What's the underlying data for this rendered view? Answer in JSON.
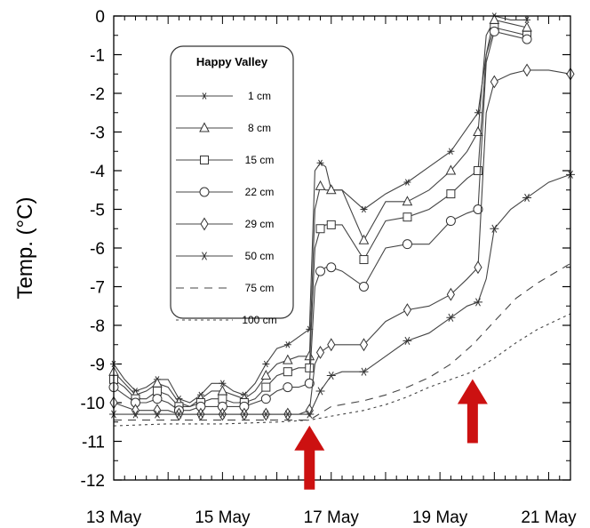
{
  "chart_data": {
    "type": "line",
    "title": "",
    "xlabel": "",
    "ylabel": "Temp. (°C)",
    "xlim": [
      13,
      21.4
    ],
    "ylim": [
      -12,
      0
    ],
    "x_ticks": [
      13,
      15,
      17,
      19,
      21
    ],
    "x_tick_labels": [
      "13 May",
      "15 May",
      "17 May",
      "19 May",
      "21 May"
    ],
    "y_ticks": [
      0,
      -1,
      -2,
      -3,
      -4,
      -5,
      -6,
      -7,
      -8,
      -9,
      -10,
      -11,
      -12
    ],
    "y_tick_labels": [
      "0",
      "-1",
      "-2",
      "-3",
      "-4",
      "-5",
      "-6",
      "-7",
      "-8",
      "-9",
      "-10",
      "-11",
      "-12"
    ],
    "grid": false,
    "legend": {
      "title": "Happy Valley",
      "placement": "top-left"
    },
    "series": [
      {
        "name": "1 cm",
        "marker": "star-small",
        "dash": "solid",
        "x": [
          13,
          13.2,
          13.4,
          13.6,
          13.8,
          14.0,
          14.2,
          14.4,
          14.6,
          14.8,
          15.0,
          15.2,
          15.4,
          15.6,
          15.8,
          16.0,
          16.2,
          16.4,
          16.6,
          16.7,
          16.8,
          16.9,
          17.0,
          17.2,
          17.6,
          18.0,
          18.4,
          18.8,
          19.2,
          19.5,
          19.7,
          19.85,
          20.0,
          20.3,
          20.6
        ],
        "y": [
          -9.0,
          -9.4,
          -9.7,
          -9.6,
          -9.4,
          -9.4,
          -9.9,
          -10.0,
          -9.8,
          -9.5,
          -9.5,
          -9.7,
          -9.8,
          -9.5,
          -9.0,
          -8.6,
          -8.5,
          -8.3,
          -8.1,
          -4.0,
          -3.8,
          -3.9,
          -4.5,
          -4.5,
          -5.0,
          -4.6,
          -4.3,
          -3.9,
          -3.5,
          -2.9,
          -2.5,
          -1.0,
          0.0,
          -0.1,
          -0.1
        ]
      },
      {
        "name": "8 cm",
        "marker": "triangle",
        "dash": "solid",
        "x": [
          13,
          13.2,
          13.4,
          13.6,
          13.8,
          14.0,
          14.2,
          14.4,
          14.6,
          14.8,
          15.0,
          15.2,
          15.4,
          15.6,
          15.8,
          16.0,
          16.2,
          16.4,
          16.6,
          16.7,
          16.8,
          16.9,
          17.0,
          17.2,
          17.6,
          18.0,
          18.4,
          18.8,
          19.2,
          19.5,
          19.7,
          19.85,
          20.0,
          20.3,
          20.6
        ],
        "y": [
          -9.2,
          -9.5,
          -9.8,
          -9.7,
          -9.5,
          -9.6,
          -10.0,
          -10.1,
          -9.9,
          -9.7,
          -9.7,
          -9.8,
          -9.9,
          -9.7,
          -9.3,
          -9.0,
          -8.9,
          -8.8,
          -8.8,
          -5.0,
          -4.4,
          -4.5,
          -4.5,
          -4.5,
          -5.8,
          -4.8,
          -4.8,
          -4.5,
          -4.0,
          -3.5,
          -3.0,
          -0.5,
          -0.1,
          -0.2,
          -0.3
        ]
      },
      {
        "name": "15 cm",
        "marker": "square",
        "dash": "solid",
        "x": [
          13,
          13.2,
          13.4,
          13.6,
          13.8,
          14.0,
          14.2,
          14.4,
          14.6,
          14.8,
          15.0,
          15.2,
          15.4,
          15.6,
          15.8,
          16.0,
          16.2,
          16.4,
          16.6,
          16.7,
          16.8,
          16.9,
          17.0,
          17.2,
          17.6,
          18.0,
          18.4,
          18.8,
          19.2,
          19.5,
          19.7,
          19.85,
          20.0,
          20.3,
          20.6
        ],
        "y": [
          -9.4,
          -9.6,
          -9.9,
          -9.9,
          -9.7,
          -9.8,
          -10.1,
          -10.1,
          -10.0,
          -9.9,
          -9.9,
          -10.0,
          -10.0,
          -9.9,
          -9.6,
          -9.3,
          -9.2,
          -9.1,
          -9.1,
          -6.0,
          -5.5,
          -5.4,
          -5.4,
          -5.4,
          -6.3,
          -5.3,
          -5.2,
          -5.0,
          -4.6,
          -4.2,
          -4.0,
          -1.0,
          -0.3,
          -0.4,
          -0.5
        ]
      },
      {
        "name": "22 cm",
        "marker": "circle",
        "dash": "solid",
        "x": [
          13,
          13.2,
          13.4,
          13.6,
          13.8,
          14.0,
          14.2,
          14.4,
          14.6,
          14.8,
          15.0,
          15.2,
          15.4,
          15.6,
          15.8,
          16.0,
          16.2,
          16.4,
          16.6,
          16.7,
          16.8,
          16.9,
          17.0,
          17.2,
          17.6,
          18.0,
          18.4,
          18.8,
          19.2,
          19.5,
          19.7,
          19.85,
          20.0,
          20.3,
          20.6
        ],
        "y": [
          -9.6,
          -9.8,
          -10.0,
          -10.0,
          -9.9,
          -10.0,
          -10.2,
          -10.2,
          -10.1,
          -10.1,
          -10.1,
          -10.1,
          -10.1,
          -10.0,
          -9.9,
          -9.7,
          -9.6,
          -9.6,
          -9.5,
          -7.0,
          -6.6,
          -6.5,
          -6.5,
          -6.6,
          -7.0,
          -6.0,
          -5.9,
          -5.9,
          -5.3,
          -5.1,
          -5.0,
          -1.2,
          -0.4,
          -0.5,
          -0.6
        ]
      },
      {
        "name": "29 cm",
        "marker": "diamond",
        "dash": "solid",
        "x": [
          13,
          13.2,
          13.4,
          13.6,
          13.8,
          14.0,
          14.2,
          14.4,
          14.6,
          14.8,
          15.0,
          15.2,
          15.4,
          15.6,
          15.8,
          16.0,
          16.2,
          16.4,
          16.6,
          16.7,
          16.8,
          16.9,
          17.0,
          17.2,
          17.6,
          18.0,
          18.4,
          18.8,
          19.2,
          19.5,
          19.7,
          19.85,
          20.0,
          20.3,
          20.6,
          21.0,
          21.4
        ],
        "y": [
          -10.0,
          -10.1,
          -10.2,
          -10.2,
          -10.2,
          -10.2,
          -10.3,
          -10.3,
          -10.3,
          -10.3,
          -10.3,
          -10.3,
          -10.3,
          -10.3,
          -10.3,
          -10.3,
          -10.3,
          -10.3,
          -10.2,
          -9.0,
          -8.7,
          -8.6,
          -8.5,
          -8.5,
          -8.5,
          -7.9,
          -7.6,
          -7.5,
          -7.2,
          -6.8,
          -6.5,
          -2.5,
          -1.7,
          -1.5,
          -1.4,
          -1.4,
          -1.5
        ]
      },
      {
        "name": "50 cm",
        "marker": "star",
        "dash": "solid",
        "x": [
          13,
          13.2,
          13.4,
          13.6,
          13.8,
          14.0,
          14.2,
          14.4,
          14.6,
          14.8,
          15.0,
          15.2,
          15.4,
          15.6,
          15.8,
          16.0,
          16.2,
          16.4,
          16.6,
          16.7,
          16.8,
          16.9,
          17.0,
          17.2,
          17.6,
          18.0,
          18.4,
          18.8,
          19.2,
          19.5,
          19.7,
          19.85,
          20.0,
          20.3,
          20.6,
          21.0,
          21.4
        ],
        "y": [
          -10.3,
          -10.3,
          -10.3,
          -10.3,
          -10.3,
          -10.3,
          -10.3,
          -10.3,
          -10.3,
          -10.3,
          -10.3,
          -10.3,
          -10.3,
          -10.3,
          -10.3,
          -10.3,
          -10.3,
          -10.3,
          -10.3,
          -10.0,
          -9.7,
          -9.5,
          -9.3,
          -9.2,
          -9.2,
          -8.8,
          -8.4,
          -8.2,
          -7.8,
          -7.5,
          -7.4,
          -6.8,
          -5.5,
          -5.0,
          -4.7,
          -4.3,
          -4.1
        ]
      },
      {
        "name": "75 cm",
        "marker": "none",
        "dash": "long",
        "x": [
          13,
          14.0,
          15.0,
          16.0,
          16.6,
          17.0,
          17.6,
          18.0,
          18.4,
          18.8,
          19.2,
          19.6,
          20.0,
          20.4,
          20.8,
          21.4
        ],
        "y": [
          -10.45,
          -10.45,
          -10.45,
          -10.45,
          -10.45,
          -10.1,
          -9.95,
          -9.8,
          -9.6,
          -9.35,
          -9.0,
          -8.5,
          -7.9,
          -7.3,
          -6.9,
          -6.4
        ]
      },
      {
        "name": "100 cm",
        "marker": "none",
        "dash": "short",
        "x": [
          13,
          14.0,
          15.0,
          16.0,
          16.6,
          17.0,
          17.6,
          18.0,
          18.4,
          18.8,
          19.2,
          19.6,
          20.0,
          20.4,
          20.8,
          21.4
        ],
        "y": [
          -10.6,
          -10.55,
          -10.55,
          -10.5,
          -10.45,
          -10.35,
          -10.2,
          -10.05,
          -9.85,
          -9.6,
          -9.4,
          -9.2,
          -8.85,
          -8.45,
          -8.1,
          -7.7
        ]
      }
    ],
    "annotations": [
      {
        "type": "arrow",
        "color": "#cc1111",
        "x": 16.6,
        "y": -10.5
      },
      {
        "type": "arrow",
        "color": "#cc1111",
        "x": 19.6,
        "y": -9.3
      }
    ]
  }
}
